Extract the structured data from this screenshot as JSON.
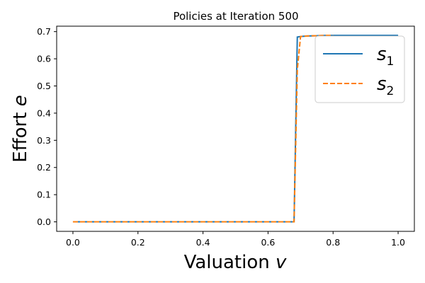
{
  "chart_data": {
    "type": "line",
    "title": "Policies at Iteration 500",
    "xlabel": {
      "text": "Valuation ",
      "var": "v"
    },
    "ylabel": {
      "text": "Effort ",
      "var": "e"
    },
    "xlim": [
      -0.05,
      1.05
    ],
    "ylim": [
      -0.035,
      0.72
    ],
    "x_ticks": [
      0.0,
      0.2,
      0.4,
      0.6,
      0.8,
      1.0
    ],
    "x_tick_labels": [
      "0.0",
      "0.2",
      "0.4",
      "0.6",
      "0.8",
      "1.0"
    ],
    "y_ticks": [
      0.0,
      0.1,
      0.2,
      0.3,
      0.4,
      0.5,
      0.6,
      0.7
    ],
    "y_tick_labels": [
      "0.0",
      "0.1",
      "0.2",
      "0.3",
      "0.4",
      "0.5",
      "0.6",
      "0.7"
    ],
    "grid": false,
    "legend_position": "top-right",
    "series": [
      {
        "name": {
          "base": "s",
          "sub": "1"
        },
        "color": "#1f77b4",
        "style": "solid",
        "x": [
          0.0,
          0.1,
          0.2,
          0.3,
          0.4,
          0.5,
          0.6,
          0.68,
          0.69,
          0.7,
          0.72,
          0.75,
          0.78,
          0.8,
          0.85,
          0.9,
          0.95,
          1.0
        ],
        "y": [
          0.0,
          0.0,
          0.0,
          0.0,
          0.0,
          0.0,
          0.0,
          0.0,
          0.68,
          0.682,
          0.684,
          0.685,
          0.686,
          0.686,
          0.686,
          0.686,
          0.686,
          0.686
        ]
      },
      {
        "name": {
          "base": "s",
          "sub": "2"
        },
        "color": "#ff7f0e",
        "style": "dashed",
        "x": [
          0.0,
          0.1,
          0.2,
          0.3,
          0.4,
          0.5,
          0.6,
          0.68,
          0.69,
          0.7,
          0.72,
          0.75,
          0.78,
          0.8
        ],
        "y": [
          0.0,
          0.0,
          0.0,
          0.0,
          0.0,
          0.0,
          0.0,
          0.0,
          0.56,
          0.682,
          0.684,
          0.685,
          0.686,
          0.686
        ]
      }
    ]
  }
}
